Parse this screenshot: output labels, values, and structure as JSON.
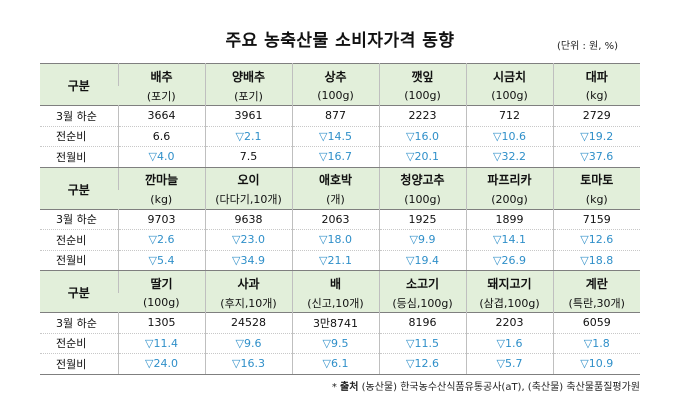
{
  "title": "주요 농축산물 소비자가격 동향",
  "unit": "(단위 : 원, %)",
  "header_label": "구분",
  "row_labels": [
    "3월 하순",
    "전순비",
    "전월비"
  ],
  "groups": [
    {
      "items": [
        {
          "name": "배추",
          "unit": "(포기)",
          "price": "3664",
          "wow": "6.6",
          "mom": "▽4.0"
        },
        {
          "name": "양배추",
          "unit": "(포기)",
          "price": "3961",
          "wow": "▽2.1",
          "mom": "7.5"
        },
        {
          "name": "상추",
          "unit": "(100g)",
          "price": "877",
          "wow": "▽14.5",
          "mom": "▽16.7"
        },
        {
          "name": "깻잎",
          "unit": "(100g)",
          "price": "2223",
          "wow": "▽16.0",
          "mom": "▽20.1"
        },
        {
          "name": "시금치",
          "unit": "(100g)",
          "price": "712",
          "wow": "▽10.6",
          "mom": "▽32.2"
        },
        {
          "name": "대파",
          "unit": "(kg)",
          "price": "2729",
          "wow": "▽19.2",
          "mom": "▽37.6"
        }
      ]
    },
    {
      "items": [
        {
          "name": "깐마늘",
          "unit": "(kg)",
          "price": "9703",
          "wow": "▽2.6",
          "mom": "▽5.4"
        },
        {
          "name": "오이",
          "unit": "(다다기,10개)",
          "price": "9638",
          "wow": "▽23.0",
          "mom": "▽34.9"
        },
        {
          "name": "애호박",
          "unit": "(개)",
          "price": "2063",
          "wow": "▽18.0",
          "mom": "▽21.1"
        },
        {
          "name": "청양고추",
          "unit": "(100g)",
          "price": "1925",
          "wow": "▽9.9",
          "mom": "▽19.4"
        },
        {
          "name": "파프리카",
          "unit": "(200g)",
          "price": "1899",
          "wow": "▽14.1",
          "mom": "▽26.9"
        },
        {
          "name": "토마토",
          "unit": "(kg)",
          "price": "7159",
          "wow": "▽12.6",
          "mom": "▽18.8"
        }
      ]
    },
    {
      "items": [
        {
          "name": "딸기",
          "unit": "(100g)",
          "price": "1305",
          "wow": "▽11.4",
          "mom": "▽24.0"
        },
        {
          "name": "사과",
          "unit": "(후지,10개)",
          "price": "24528",
          "wow": "▽9.6",
          "mom": "▽16.3"
        },
        {
          "name": "배",
          "unit": "(신고,10개)",
          "price": "3만8741",
          "wow": "▽9.5",
          "mom": "▽6.1"
        },
        {
          "name": "소고기",
          "unit": "(등심,100g)",
          "price": "8196",
          "wow": "▽11.5",
          "mom": "▽12.6"
        },
        {
          "name": "돼지고기",
          "unit": "(삼겹,100g)",
          "price": "2203",
          "wow": "▽1.6",
          "mom": "▽5.7"
        },
        {
          "name": "계란",
          "unit": "(특란,30개)",
          "price": "6059",
          "wow": "▽1.8",
          "mom": "▽10.9"
        }
      ]
    }
  ],
  "source": {
    "prefix": "* ",
    "label": "출처",
    "text": " (농산물) 한국농수산식품유통공사(aT), (축산물) 축산물품질평가원"
  },
  "colors": {
    "header_bg": "#e2efda",
    "decrease": "#2f8fc9",
    "border": "#7f7f7f"
  }
}
